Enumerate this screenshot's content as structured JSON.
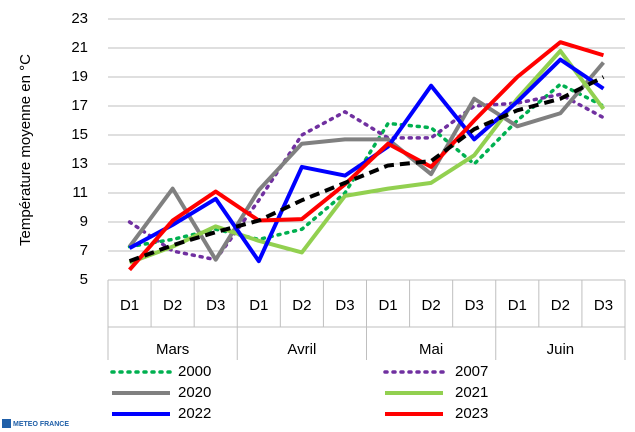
{
  "chart_data": {
    "type": "line",
    "y_label": "Température moyenne en °C",
    "categories": [
      "D1",
      "D2",
      "D3",
      "D1",
      "D2",
      "D3",
      "D1",
      "D2",
      "D3",
      "D1",
      "D2",
      "D3"
    ],
    "category_groups": [
      "Mars",
      "Avril",
      "Mai",
      "Juin"
    ],
    "ylim": [
      5,
      23
    ],
    "yticks": [
      5,
      7,
      9,
      11,
      13,
      15,
      17,
      19,
      21,
      23
    ],
    "grid": true,
    "series": [
      {
        "name": "2000",
        "color": "#00b050",
        "dash": "dotted",
        "values": [
          7.3,
          7.8,
          8.5,
          7.8,
          8.5,
          11,
          15.8,
          15.5,
          13,
          16,
          18.5,
          17
        ]
      },
      {
        "name": "2007",
        "color": "#7030a0",
        "dash": "dotted",
        "values": [
          9,
          7,
          6.4,
          10.5,
          15,
          16.6,
          14.8,
          14.8,
          17,
          17.2,
          17.8,
          16.2
        ]
      },
      {
        "name": "2020",
        "color": "#808080",
        "dash": "solid",
        "values": [
          7.3,
          11.3,
          6.4,
          11.2,
          14.4,
          14.7,
          14.7,
          12.3,
          17.5,
          15.6,
          16.5,
          20
        ]
      },
      {
        "name": "2021",
        "color": "#92d050",
        "dash": "solid",
        "values": [
          6.2,
          7.3,
          8.7,
          7.7,
          6.9,
          10.8,
          11.3,
          11.7,
          13.6,
          17.5,
          20.8,
          16.8
        ]
      },
      {
        "name": "2022",
        "color": "#0000ff",
        "dash": "solid",
        "values": [
          7.2,
          8.8,
          10.6,
          6.3,
          12.8,
          12.2,
          14.2,
          18.4,
          14.7,
          17.3,
          20.2,
          18.2
        ]
      },
      {
        "name": "2023",
        "color": "#ff0000",
        "dash": "solid",
        "values": [
          5.7,
          9.1,
          11.1,
          9.1,
          9.2,
          11.6,
          14.4,
          12.8,
          16,
          19,
          21.4,
          20.5
        ]
      },
      {
        "color": "#000000",
        "dash": "dashed",
        "values": [
          6.3,
          7.4,
          8.3,
          9.1,
          10.5,
          11.7,
          12.9,
          13.2,
          15.4,
          16.7,
          17.5,
          19
        ]
      }
    ],
    "source": "METEO FRANCE"
  }
}
